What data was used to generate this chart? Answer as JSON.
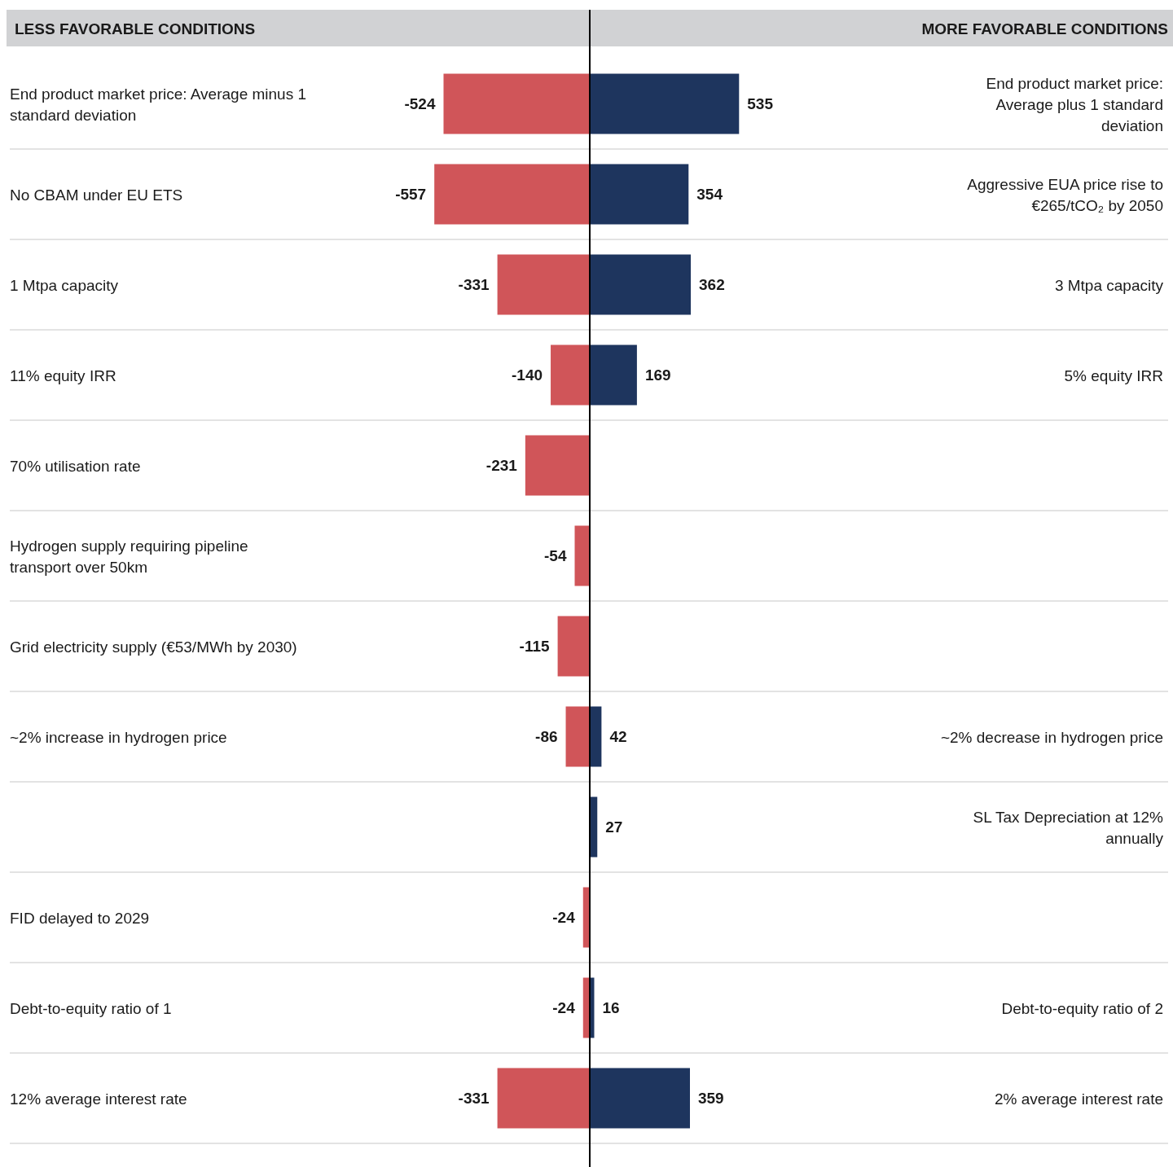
{
  "chart_data": {
    "type": "bar",
    "orientation": "horizontal",
    "stacked": true,
    "data_labels": true,
    "xlim": [
      -2090,
      2090
    ],
    "categories": [
      "End product market price: Average minus 1 standard deviation",
      "No CBAM under EU ETS",
      "1 Mtpa capacity",
      "11% equity IRR",
      "70% utilisation rate",
      "Hydrogen supply requiring pipeline transport over 50km",
      "Grid electricity supply (€53/MWh by 2030)",
      "~2% increase in hydrogen price",
      null,
      "FID delayed to 2029",
      "Debt-to-equity ratio of 1",
      "12% average interest rate"
    ],
    "y2_categories": [
      "End product market price: Average plus 1 standard deviation",
      "Aggressive EUA price rise to €265/tCO₂ by 2050",
      "3 Mtpa capacity",
      "5% equity IRR",
      null,
      null,
      null,
      "~2% decrease in hydrogen price",
      "SL Tax Depreciation at 12% annually",
      null,
      "Debt-to-equity ratio of 2",
      "2% average interest rate"
    ],
    "series": [
      {
        "color": "#d05559",
        "values": [
          -524,
          -557,
          -331,
          -140,
          -231,
          -54,
          -115,
          -86,
          null,
          -24,
          -24,
          -331
        ]
      },
      {
        "color": "#1e355e",
        "values": [
          535,
          354,
          362,
          169,
          null,
          null,
          null,
          42,
          27,
          null,
          16,
          359
        ]
      }
    ],
    "annotations": [
      "LESS FAVORABLE CONDITIONS",
      "MORE FAVORABLE CONDITIONS"
    ]
  }
}
